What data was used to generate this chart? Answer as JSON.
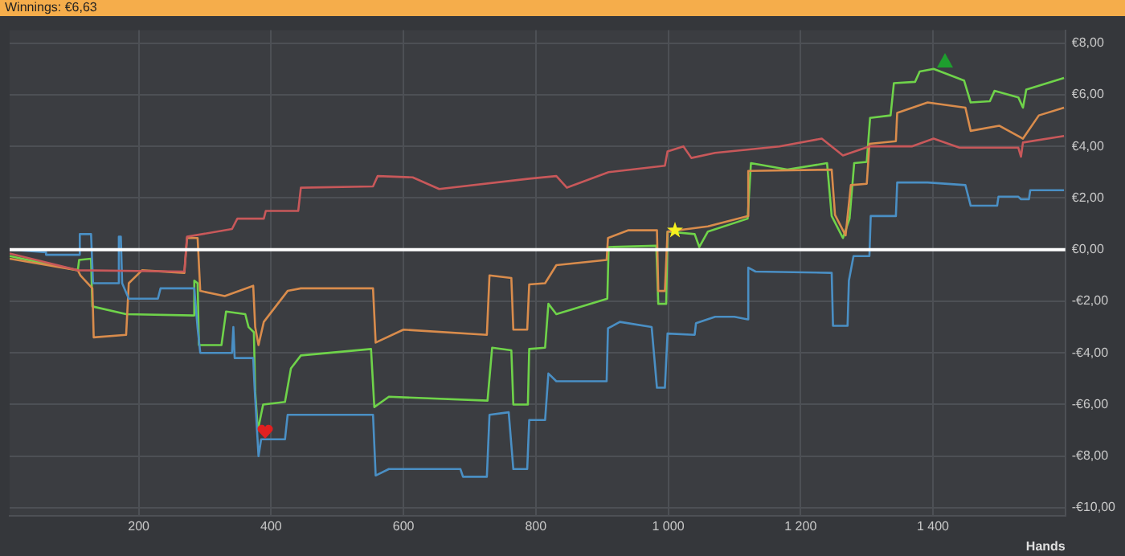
{
  "chart_data": {
    "type": "line",
    "title": "Winnings: €6,63",
    "xlabel": "Hands",
    "xlim": [
      5,
      1600
    ],
    "ylim": [
      -10.3,
      8.5
    ],
    "xticks": [
      200,
      400,
      600,
      800,
      {
        "value": 1000,
        "label": "1 000"
      },
      {
        "value": 1200,
        "label": "1 200"
      },
      {
        "value": 1400,
        "label": "1 400"
      }
    ],
    "yticks": [
      {
        "value": -10,
        "label": "-€10,00"
      },
      {
        "value": -8,
        "label": "-€8,00"
      },
      {
        "value": -6,
        "label": "-€6,00"
      },
      {
        "value": -4,
        "label": "-€4,00"
      },
      {
        "value": -2,
        "label": "-€2,00"
      },
      {
        "value": 0,
        "label": "€0,00"
      },
      {
        "value": 2,
        "label": "€2,00"
      },
      {
        "value": 4,
        "label": "€4,00"
      },
      {
        "value": 6,
        "label": "€6,00"
      },
      {
        "value": 8,
        "label": "€8,00"
      }
    ],
    "grid": true,
    "legend": false,
    "marker": "none",
    "line_style": "solid",
    "ref_lines": [
      {
        "axis": "y",
        "value": 0,
        "color": "#ffffff"
      }
    ],
    "series": [
      {
        "color": "#c8585a",
        "x": [
          5,
          108,
          269,
          273,
          341,
          349,
          389,
          392,
          441,
          445,
          554,
          561,
          614,
          654,
          790,
          831,
          847,
          910,
          995,
          999,
          1023,
          1035,
          1071,
          1168,
          1232,
          1264,
          1304,
          1368,
          1401,
          1440,
          1529,
          1533,
          1536,
          1598
        ],
        "values": [
          -0.15,
          -0.8,
          -0.85,
          0.5,
          0.8,
          1.2,
          1.2,
          1.5,
          1.5,
          2.4,
          2.45,
          2.85,
          2.8,
          2.35,
          2.75,
          2.85,
          2.4,
          3.0,
          3.25,
          3.8,
          4.0,
          3.55,
          3.75,
          4.0,
          4.3,
          3.65,
          4.0,
          4.0,
          4.3,
          3.95,
          3.95,
          3.6,
          4.15,
          4.4
        ]
      },
      {
        "color": "#4a8fc4",
        "x": [
          5,
          60,
          60,
          111,
          111,
          128,
          131,
          169,
          170,
          173,
          175,
          185,
          229,
          233,
          284,
          289,
          293,
          341,
          343,
          345,
          373,
          375,
          381,
          385,
          421,
          425,
          554,
          558,
          578,
          686,
          690,
          726,
          730,
          759,
          766,
          787,
          790,
          814,
          819,
          831,
          907,
          909,
          927,
          975,
          983,
          995,
          999,
          1040,
          1042,
          1071,
          1100,
          1120,
          1121,
          1132,
          1247,
          1249,
          1271,
          1273,
          1280,
          1304,
          1306,
          1344,
          1346,
          1392,
          1449,
          1457,
          1497,
          1499,
          1529,
          1533,
          1545,
          1547,
          1598
        ],
        "values": [
          0,
          -0.1,
          -0.2,
          -0.2,
          0.6,
          0.6,
          -1.3,
          -1.3,
          0.5,
          0.5,
          -1.3,
          -1.9,
          -1.9,
          -1.5,
          -1.5,
          -3.05,
          -4.0,
          -4.0,
          -3.0,
          -4.2,
          -4.2,
          -5.3,
          -8.0,
          -7.35,
          -7.35,
          -6.4,
          -6.4,
          -8.75,
          -8.5,
          -8.5,
          -8.8,
          -8.8,
          -6.4,
          -6.3,
          -8.5,
          -8.5,
          -6.6,
          -6.6,
          -4.8,
          -5.1,
          -5.1,
          -3.05,
          -2.8,
          -3.0,
          -5.35,
          -5.35,
          -3.25,
          -3.3,
          -2.85,
          -2.6,
          -2.6,
          -2.7,
          -0.7,
          -0.85,
          -0.9,
          -2.95,
          -2.95,
          -1.2,
          -0.25,
          -0.25,
          1.3,
          1.3,
          2.6,
          2.6,
          2.5,
          1.7,
          1.7,
          2.05,
          2.05,
          1.95,
          1.95,
          2.3,
          2.3
        ]
      },
      {
        "color": "#d98c4c",
        "x": [
          5,
          108,
          112,
          130,
          132,
          181,
          185,
          205,
          269,
          273,
          289,
          293,
          330,
          373,
          376,
          381,
          389,
          425,
          445,
          554,
          558,
          600,
          726,
          730,
          763,
          766,
          787,
          790,
          814,
          831,
          907,
          909,
          940,
          983,
          985,
          995,
          999,
          1060,
          1120,
          1121,
          1247,
          1252,
          1268,
          1276,
          1300,
          1304,
          1344,
          1346,
          1392,
          1449,
          1457,
          1500,
          1536,
          1560,
          1598
        ],
        "values": [
          -0.35,
          -0.8,
          -1.0,
          -1.5,
          -3.4,
          -3.3,
          -1.3,
          -0.8,
          -0.9,
          0.45,
          0.45,
          -1.6,
          -1.8,
          -1.4,
          -3.0,
          -3.7,
          -2.8,
          -1.6,
          -1.5,
          -1.5,
          -3.6,
          -3.1,
          -3.3,
          -1.0,
          -1.1,
          -3.1,
          -3.1,
          -1.35,
          -1.3,
          -0.6,
          -0.4,
          0.45,
          0.75,
          0.75,
          -1.6,
          -1.6,
          0.7,
          0.9,
          1.3,
          3.05,
          3.1,
          1.35,
          0.55,
          2.5,
          2.55,
          4.1,
          4.2,
          5.3,
          5.7,
          5.5,
          4.6,
          4.8,
          4.3,
          5.2,
          5.5
        ]
      },
      {
        "color": "#6fd34a",
        "x": [
          5,
          108,
          110,
          128,
          130,
          181,
          282,
          284,
          289,
          291,
          325,
          332,
          361,
          366,
          374,
          376,
          380,
          388,
          421,
          430,
          445,
          551,
          556,
          578,
          727,
          734,
          763,
          766,
          788,
          790,
          814,
          819,
          831,
          908,
          910,
          982,
          985,
          997,
          999,
          1040,
          1047,
          1060,
          1120,
          1125,
          1180,
          1240,
          1247,
          1264,
          1274,
          1281,
          1300,
          1305,
          1336,
          1341,
          1373,
          1380,
          1401,
          1447,
          1457,
          1486,
          1493,
          1529,
          1536,
          1541,
          1598
        ],
        "values": [
          -0.25,
          -0.8,
          -0.4,
          -0.35,
          -2.2,
          -2.5,
          -2.55,
          -1.2,
          -1.3,
          -3.7,
          -3.7,
          -2.4,
          -2.5,
          -3.0,
          -3.2,
          -5.5,
          -7.0,
          -6.0,
          -5.9,
          -4.6,
          -4.1,
          -3.85,
          -6.1,
          -5.7,
          -5.85,
          -3.8,
          -3.9,
          -6.0,
          -6.0,
          -3.85,
          -3.8,
          -2.1,
          -2.5,
          -1.9,
          0.1,
          0.15,
          -2.1,
          -2.1,
          0.7,
          0.6,
          0.1,
          0.7,
          1.2,
          3.35,
          3.1,
          3.35,
          1.3,
          0.45,
          1.2,
          3.35,
          3.4,
          5.1,
          5.2,
          6.45,
          6.5,
          6.9,
          7.0,
          6.55,
          5.7,
          5.75,
          6.15,
          5.9,
          5.5,
          6.2,
          6.65
        ]
      }
    ]
  }
}
